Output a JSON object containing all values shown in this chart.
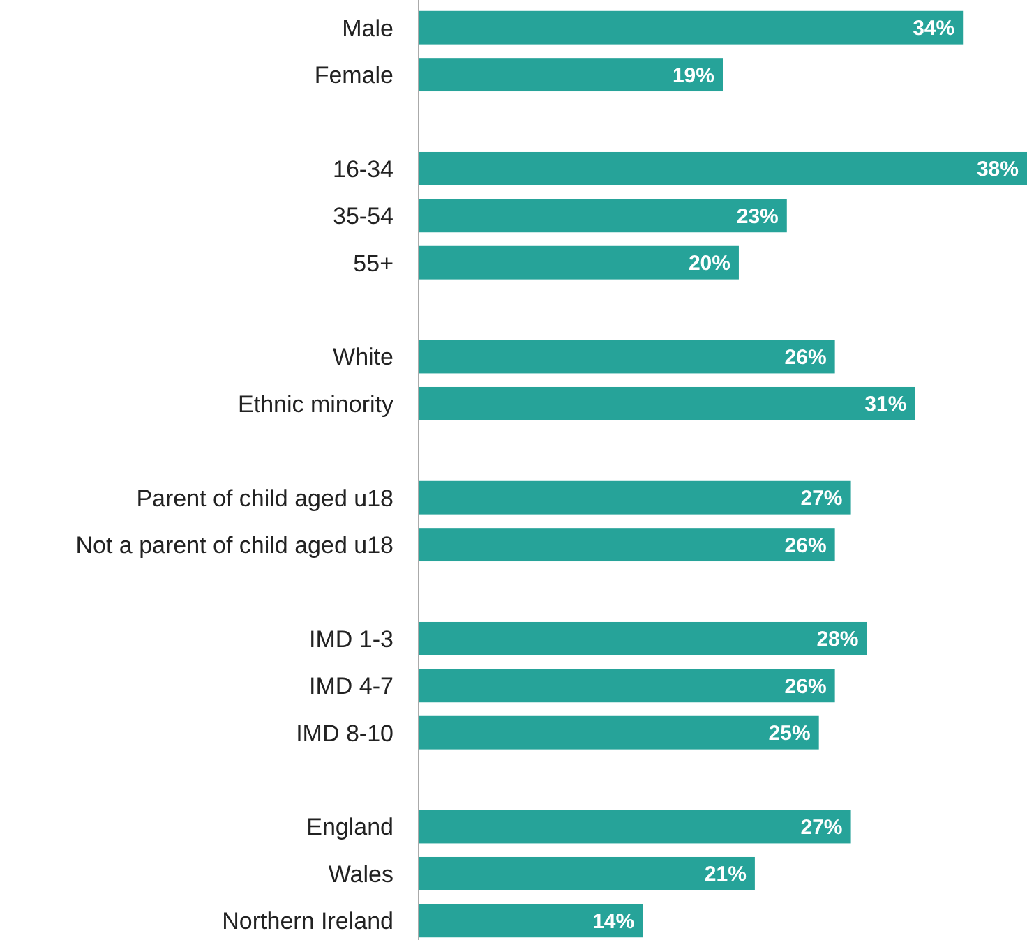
{
  "chart_data": {
    "type": "bar",
    "orientation": "horizontal",
    "categories": [
      "Male",
      "Female",
      null,
      "16-34",
      "35-54",
      "55+",
      null,
      "White",
      "Ethnic minority",
      null,
      "Parent of child aged u18",
      "Not a parent of child aged u18",
      null,
      "IMD 1-3",
      "IMD 4-7",
      "IMD 8-10",
      null,
      "England",
      "Wales",
      "Northern Ireland"
    ],
    "values": [
      34,
      19,
      null,
      38,
      23,
      20,
      null,
      26,
      31,
      null,
      27,
      26,
      null,
      28,
      26,
      25,
      null,
      27,
      21,
      14
    ],
    "value_labels": [
      "34%",
      "19%",
      null,
      "38%",
      "23%",
      "20%",
      null,
      "26%",
      "31%",
      null,
      "27%",
      "26%",
      null,
      "28%",
      "26%",
      "25%",
      null,
      "27%",
      "21%",
      "14%"
    ],
    "color": "#26a399"
  }
}
